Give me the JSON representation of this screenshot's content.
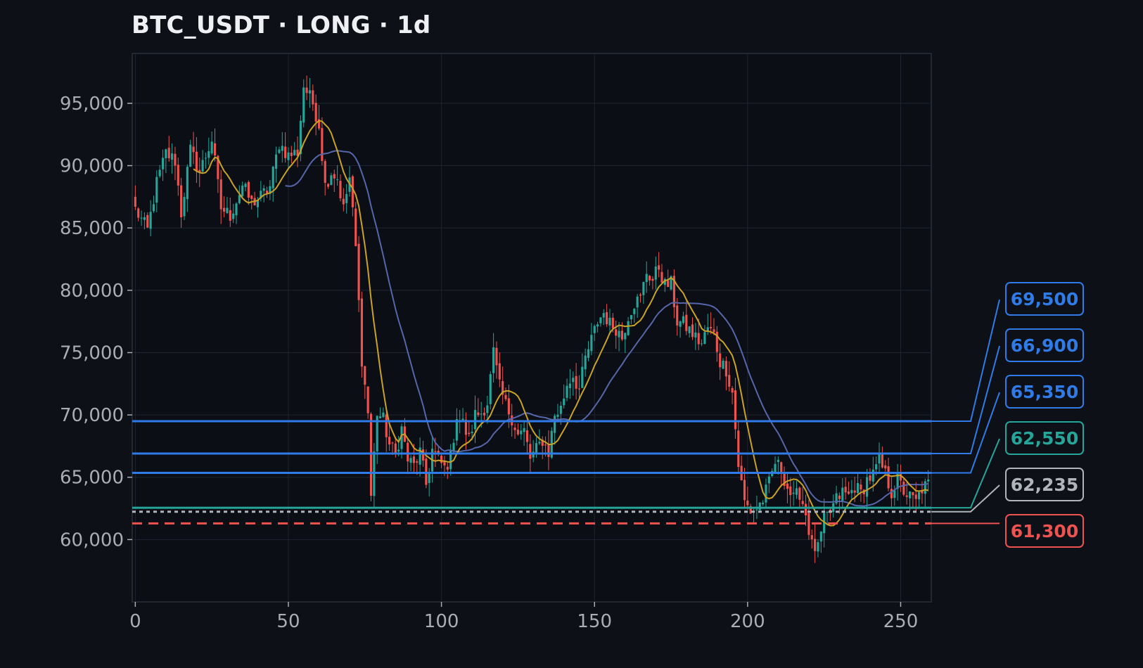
{
  "chart_data": {
    "type": "candlestick",
    "title": "BTC_USDT · LONG · 1d",
    "xlabel": "",
    "ylabel": "",
    "xlim": [
      -1,
      260
    ],
    "ylim": [
      55000,
      99000
    ],
    "x_ticks": [
      0,
      50,
      100,
      150,
      200,
      250
    ],
    "x_tick_labels": [
      "0",
      "50",
      "100",
      "150",
      "200",
      "250"
    ],
    "y_ticks": [
      60000,
      65000,
      70000,
      75000,
      80000,
      85000,
      90000,
      95000
    ],
    "y_tick_labels": [
      "60,000",
      "65,000",
      "70,000",
      "75,000",
      "80,000",
      "85,000",
      "90,000",
      "95,000"
    ],
    "grid": true,
    "colors": {
      "background": "#0d1017",
      "panel": "#0b0e14",
      "grid": "#1e2430",
      "up": "#26a69a",
      "down": "#ef5350",
      "fast_ma": "#c9a227",
      "slow_ma": "#5566aa",
      "target": "#2f7be8",
      "entry": "#26a69a",
      "current": "#b0b4bb",
      "stop": "#ef5350"
    },
    "close_anchors": [
      [
        0,
        86500
      ],
      [
        4,
        84800
      ],
      [
        7,
        88600
      ],
      [
        10,
        91000
      ],
      [
        13,
        90400
      ],
      [
        15,
        86200
      ],
      [
        18,
        91200
      ],
      [
        21,
        89500
      ],
      [
        25,
        92100
      ],
      [
        28,
        86600
      ],
      [
        31,
        86000
      ],
      [
        35,
        88400
      ],
      [
        38,
        87000
      ],
      [
        41,
        87500
      ],
      [
        44,
        88300
      ],
      [
        47,
        91800
      ],
      [
        50,
        90800
      ],
      [
        53,
        91100
      ],
      [
        55,
        96400
      ],
      [
        58,
        95000
      ],
      [
        60,
        93300
      ],
      [
        62,
        88400
      ],
      [
        64,
        89500
      ],
      [
        66,
        89000
      ],
      [
        68,
        86500
      ],
      [
        70,
        89000
      ],
      [
        72,
        83400
      ],
      [
        74,
        74500
      ],
      [
        76,
        70200
      ],
      [
        77,
        63500
      ],
      [
        79,
        70200
      ],
      [
        81,
        69600
      ],
      [
        83,
        67600
      ],
      [
        85,
        66800
      ],
      [
        87,
        68900
      ],
      [
        89,
        66400
      ],
      [
        91,
        65900
      ],
      [
        93,
        67000
      ],
      [
        95,
        64400
      ],
      [
        97,
        67200
      ],
      [
        99,
        66400
      ],
      [
        101,
        65700
      ],
      [
        103,
        66600
      ],
      [
        105,
        70000
      ],
      [
        107,
        69300
      ],
      [
        109,
        68000
      ],
      [
        111,
        70000
      ],
      [
        113,
        70200
      ],
      [
        115,
        71000
      ],
      [
        117,
        75000
      ],
      [
        119,
        72200
      ],
      [
        121,
        70800
      ],
      [
        123,
        69800
      ],
      [
        125,
        68400
      ],
      [
        127,
        68700
      ],
      [
        129,
        66500
      ],
      [
        131,
        67200
      ],
      [
        133,
        68000
      ],
      [
        135,
        67000
      ],
      [
        137,
        70000
      ],
      [
        139,
        70500
      ],
      [
        141,
        72500
      ],
      [
        143,
        73200
      ],
      [
        145,
        72000
      ],
      [
        147,
        74500
      ],
      [
        149,
        76000
      ],
      [
        151,
        77500
      ],
      [
        153,
        78200
      ],
      [
        155,
        77300
      ],
      [
        157,
        77000
      ],
      [
        159,
        76200
      ],
      [
        161,
        78000
      ],
      [
        163,
        79000
      ],
      [
        165,
        79300
      ],
      [
        167,
        81500
      ],
      [
        169,
        80800
      ],
      [
        171,
        81900
      ],
      [
        173,
        80400
      ],
      [
        175,
        80500
      ],
      [
        177,
        77500
      ],
      [
        179,
        77300
      ],
      [
        181,
        76800
      ],
      [
        183,
        76200
      ],
      [
        185,
        75700
      ],
      [
        187,
        77000
      ],
      [
        189,
        76400
      ],
      [
        191,
        74300
      ],
      [
        193,
        73700
      ],
      [
        195,
        71800
      ],
      [
        197,
        66000
      ],
      [
        199,
        63000
      ],
      [
        201,
        62300
      ],
      [
        203,
        62500
      ],
      [
        205,
        63200
      ],
      [
        207,
        64500
      ],
      [
        209,
        66200
      ],
      [
        211,
        65600
      ],
      [
        213,
        64200
      ],
      [
        215,
        63200
      ],
      [
        217,
        63800
      ],
      [
        219,
        62100
      ],
      [
        221,
        59500
      ],
      [
        223,
        59200
      ],
      [
        225,
        61500
      ],
      [
        227,
        62200
      ],
      [
        229,
        63200
      ],
      [
        231,
        63800
      ],
      [
        233,
        63500
      ],
      [
        235,
        64300
      ],
      [
        237,
        63700
      ],
      [
        239,
        64800
      ],
      [
        241,
        65200
      ],
      [
        243,
        66300
      ],
      [
        245,
        65200
      ],
      [
        247,
        63800
      ],
      [
        249,
        64800
      ],
      [
        251,
        63900
      ],
      [
        253,
        63400
      ],
      [
        255,
        63000
      ],
      [
        257,
        64100
      ],
      [
        259,
        64400
      ]
    ],
    "levels": [
      {
        "label": "69,500",
        "value": 69500,
        "kind": "target",
        "style": "solid"
      },
      {
        "label": "66,900",
        "value": 66900,
        "kind": "target",
        "style": "solid"
      },
      {
        "label": "65,350",
        "value": 65350,
        "kind": "target",
        "style": "solid"
      },
      {
        "label": "62,550",
        "value": 62550,
        "kind": "entry",
        "style": "solid"
      },
      {
        "label": "62,235",
        "value": 62235,
        "kind": "current",
        "style": "dotted"
      },
      {
        "label": "61,300",
        "value": 61300,
        "kind": "stop",
        "style": "dashed"
      }
    ]
  }
}
